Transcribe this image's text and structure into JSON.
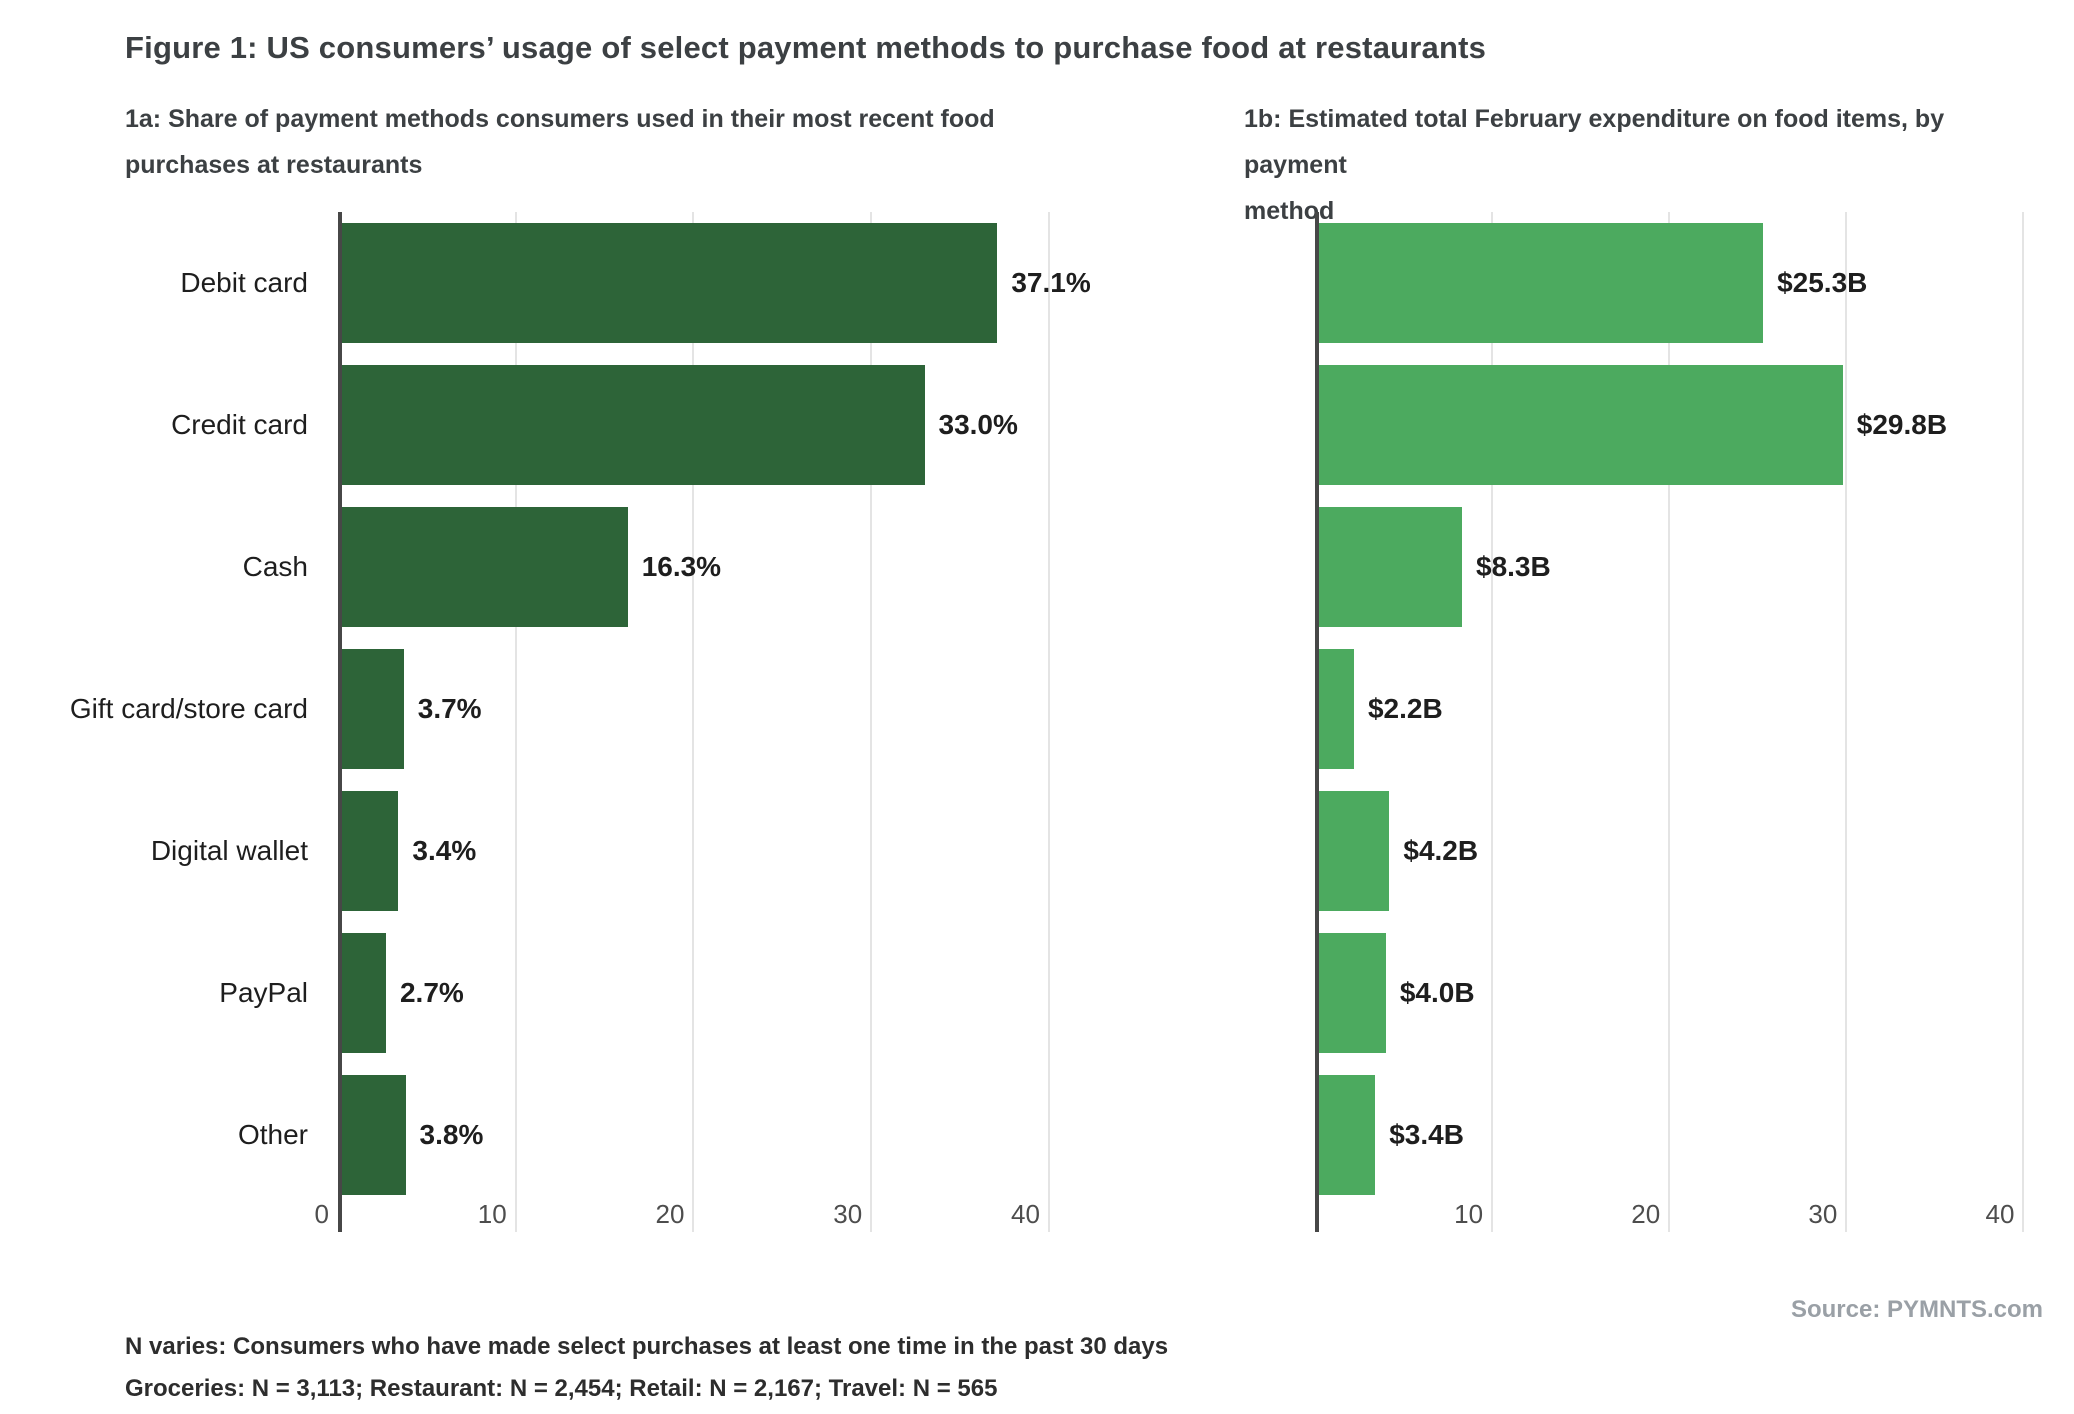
{
  "figure": {
    "title": "Figure 1: US consumers’ usage of select payment methods to purchase food at restaurants",
    "source": "Source: PYMNTS.com",
    "footnotes": [
      "N varies: Consumers who have made select purchases at least one time in the past 30 days",
      "Groceries: N = 3,113; Restaurant: N = 2,454; Retail: N = 2,167; Travel: N = 565"
    ]
  },
  "colors": {
    "bar_dark_green": "#2d6438",
    "bar_medium_green": "#4caa5f",
    "axis_line": "#474747",
    "gridline": "#e4e4e4",
    "heading_text": "#3c4043",
    "label_text": "#1e1e1e",
    "tick_text": "#4d4d4d",
    "source_text": "#9aa0a6"
  },
  "chart_data": [
    {
      "id": "1a",
      "type": "bar",
      "orientation": "horizontal",
      "subtitle_lines": [
        "1a: Share of payment methods consumers used in their most recent food",
        "purchases at restaurants"
      ],
      "categories": [
        "Debit card",
        "Credit card",
        "Cash",
        "Gift card/store card",
        "Digital wallet",
        "PayPal",
        "Other"
      ],
      "values": [
        37.1,
        33.0,
        16.3,
        3.7,
        3.4,
        2.7,
        3.8
      ],
      "value_labels": [
        "37.1%",
        "33.0%",
        "16.3%",
        "3.7%",
        "3.4%",
        "2.7%",
        "3.8%"
      ],
      "unit": "percent",
      "bar_color": "#2d6438",
      "xlim": [
        0,
        44
      ],
      "xticks": [
        0,
        10,
        20,
        30,
        40
      ],
      "show_category_labels": true,
      "grid": true,
      "legend": "none"
    },
    {
      "id": "1b",
      "type": "bar",
      "orientation": "horizontal",
      "subtitle_lines": [
        "1b: Estimated total February expenditure on food items, by payment",
        "method"
      ],
      "categories": [
        "Debit card",
        "Credit card",
        "Cash",
        "Gift card/store card",
        "Digital wallet",
        "PayPal",
        "Other"
      ],
      "values": [
        25.3,
        29.8,
        8.3,
        2.2,
        4.2,
        4.0,
        3.4
      ],
      "value_labels": [
        "$25.3B",
        "$29.8B",
        "$8.3B",
        "$2.2B",
        "$4.2B",
        "$4.0B",
        "$3.4B"
      ],
      "unit": "billions_usd",
      "bar_color": "#4caa5f",
      "xlim": [
        0,
        41.5
      ],
      "xticks": [
        10,
        20,
        30,
        40
      ],
      "show_category_labels": false,
      "grid": true,
      "legend": "none"
    }
  ]
}
